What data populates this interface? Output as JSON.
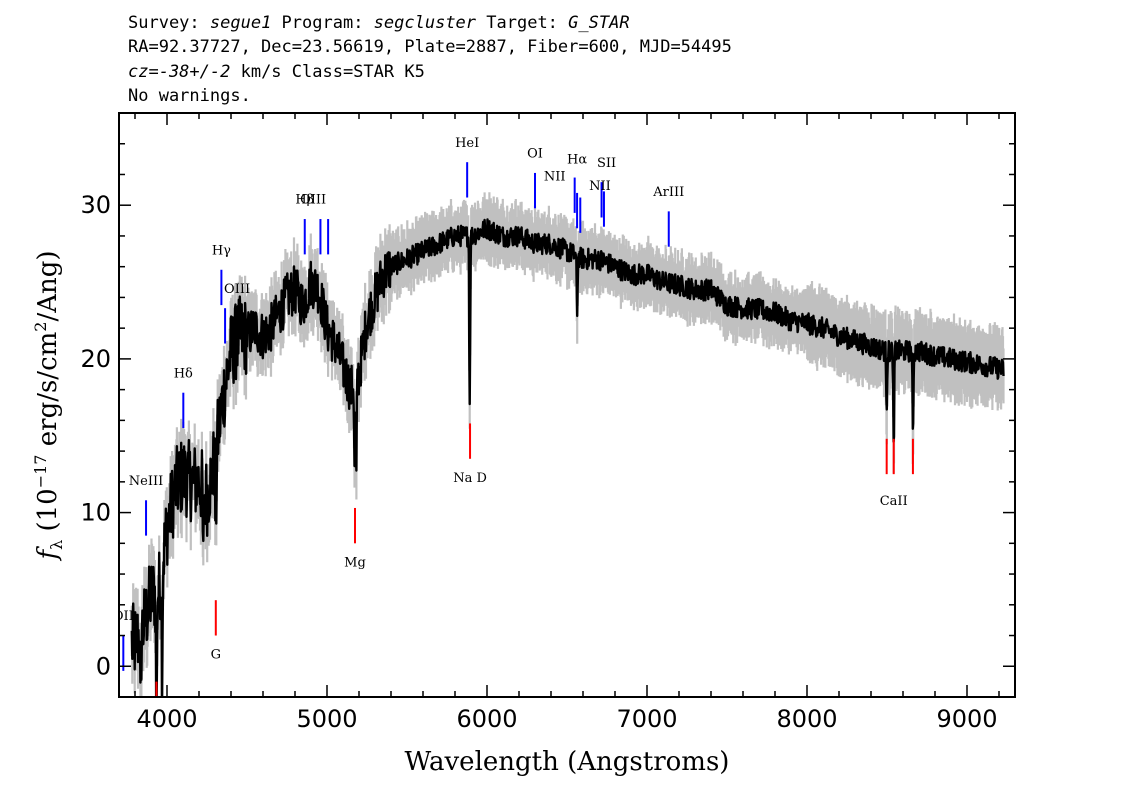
{
  "header": {
    "line1": {
      "survey_label": "Survey: ",
      "survey": "segue1",
      "program_label": " Program: ",
      "program": "segcluster",
      "target_label": " Target: ",
      "target": "G_STAR"
    },
    "line2": "RA=92.37727, Dec=23.56619, Plate=2887, Fiber=600, MJD=54495",
    "line3": {
      "cz": "cz=-38+/-2",
      "rest": " km/s Class=STAR K5"
    },
    "line4": "No warnings."
  },
  "chart_data": {
    "type": "line",
    "xlabel": "Wavelength (Angstroms)",
    "ylabel": "f_λ (10^-17 erg/s/cm^2/Ang)",
    "ylabel_parts": {
      "f": "f",
      "lambda": "λ",
      "open": " (10",
      "exp1": "−17",
      "mid": " erg/s/cm",
      "exp2": "2",
      "close": "/Ang)"
    },
    "xlim": [
      3700,
      9300
    ],
    "ylim": [
      -2,
      36
    ],
    "xticks": [
      4000,
      5000,
      6000,
      7000,
      8000,
      9000
    ],
    "yticks": [
      0,
      10,
      20,
      30
    ],
    "grid": false,
    "colors": {
      "flux": "#000000",
      "error": "#c0c0c0",
      "emission": "#0000ff",
      "absorption": "#ff0000",
      "label": "#000000"
    },
    "continuum": [
      [
        3800,
        1.5
      ],
      [
        3850,
        2.5
      ],
      [
        3900,
        4.5
      ],
      [
        3950,
        5
      ],
      [
        4000,
        9
      ],
      [
        4050,
        11.5
      ],
      [
        4100,
        12.5
      ],
      [
        4150,
        12
      ],
      [
        4200,
        12
      ],
      [
        4250,
        11
      ],
      [
        4300,
        13.5
      ],
      [
        4350,
        17.5
      ],
      [
        4400,
        20.5
      ],
      [
        4450,
        21.5
      ],
      [
        4500,
        21.5
      ],
      [
        4550,
        22
      ],
      [
        4600,
        21.5
      ],
      [
        4650,
        22
      ],
      [
        4700,
        23
      ],
      [
        4750,
        24
      ],
      [
        4800,
        24.5
      ],
      [
        4850,
        23.5
      ],
      [
        4900,
        25
      ],
      [
        4950,
        24.5
      ],
      [
        5000,
        22
      ],
      [
        5050,
        21
      ],
      [
        5100,
        19.5
      ],
      [
        5150,
        18
      ],
      [
        5200,
        19
      ],
      [
        5250,
        22.5
      ],
      [
        5300,
        24
      ],
      [
        5350,
        25.5
      ],
      [
        5400,
        26
      ],
      [
        5500,
        26.5
      ],
      [
        5600,
        27
      ],
      [
        5700,
        27.5
      ],
      [
        5800,
        28
      ],
      [
        5900,
        28
      ],
      [
        6000,
        28.5
      ],
      [
        6100,
        28
      ],
      [
        6200,
        28
      ],
      [
        6300,
        27.5
      ],
      [
        6400,
        27.5
      ],
      [
        6500,
        27
      ],
      [
        6600,
        26.5
      ],
      [
        6700,
        26.5
      ],
      [
        6800,
        26
      ],
      [
        6900,
        25.5
      ],
      [
        7000,
        25.5
      ],
      [
        7100,
        25
      ],
      [
        7200,
        24.8
      ],
      [
        7300,
        24.5
      ],
      [
        7400,
        24.5
      ],
      [
        7500,
        23.5
      ],
      [
        7600,
        23.3
      ],
      [
        7700,
        23.2
      ],
      [
        7800,
        23
      ],
      [
        7900,
        22.5
      ],
      [
        8000,
        22.3
      ],
      [
        8100,
        22
      ],
      [
        8200,
        21.5
      ],
      [
        8300,
        21.2
      ],
      [
        8400,
        20.8
      ],
      [
        8500,
        20.5
      ],
      [
        8600,
        20.5
      ],
      [
        8700,
        20.5
      ],
      [
        8800,
        20.2
      ],
      [
        8900,
        20
      ],
      [
        9000,
        19.8
      ],
      [
        9100,
        19.6
      ],
      [
        9230,
        19.3
      ]
    ],
    "absorption_features": [
      {
        "x": 3835,
        "depth": 5.5
      },
      {
        "x": 3934,
        "depth": 9
      },
      {
        "x": 3969,
        "depth": 7
      },
      {
        "x": 4227,
        "depth": 5
      },
      {
        "x": 4305,
        "depth": 6
      },
      {
        "x": 5173,
        "depth": 6.5
      },
      {
        "x": 5183,
        "depth": 7
      },
      {
        "x": 5892,
        "depth": 11
      },
      {
        "x": 6563,
        "depth": 4
      },
      {
        "x": 8498,
        "depth": 3.5
      },
      {
        "x": 8542,
        "depth": 7
      },
      {
        "x": 8662,
        "depth": 6
      }
    ],
    "emission_lines": [
      {
        "label": "OII",
        "x": 3727,
        "y1": -0.3,
        "y2": 2,
        "label_y": 3
      },
      {
        "label": "NeIII",
        "x": 3869,
        "y1": 8.5,
        "y2": 10.8,
        "label_y": 11.8
      },
      {
        "label": "Hδ",
        "x": 4102,
        "y1": 15.5,
        "y2": 17.8,
        "label_y": 18.8
      },
      {
        "label": "Hγ",
        "x": 4340,
        "y1": 23.5,
        "y2": 25.8,
        "label_y": 26.8
      },
      {
        "label": "OIII",
        "x": 4363,
        "y1": 21,
        "y2": 23.3,
        "label_y": 24.3,
        "label_dx": 12
      },
      {
        "label": "Hβ",
        "x": 4861,
        "y1": 26.8,
        "y2": 29.1,
        "label_y": 30.1
      },
      {
        "label": "",
        "x": 4959,
        "y1": 26.8,
        "y2": 29.1,
        "label_y": 30.1
      },
      {
        "label": "OIII",
        "x": 5007,
        "y1": 26.8,
        "y2": 29.1,
        "label_y": 30.1,
        "label_dx": -15
      },
      {
        "label": "HeI",
        "x": 5876,
        "y1": 30.5,
        "y2": 32.8,
        "label_y": 33.8
      },
      {
        "label": "OI",
        "x": 6300,
        "y1": 29.8,
        "y2": 32.1,
        "label_y": 33.1
      },
      {
        "label": "NII",
        "x": 6548,
        "y1": 29.5,
        "y2": 31.8,
        "label_y": 31.6,
        "label_dx": -20
      },
      {
        "label": "Hα",
        "x": 6563,
        "y1": 28.5,
        "y2": 30.8,
        "label_y": 32.7
      },
      {
        "label": "",
        "x": 6583,
        "y1": 28.2,
        "y2": 30.5,
        "label_y": 31.5
      },
      {
        "label": "SII",
        "x": 6716,
        "y1": 29.2,
        "y2": 31.5,
        "label_y": 32.5,
        "label_dx": 5
      },
      {
        "label": "NII",
        "x": 6731,
        "y1": 28.6,
        "y2": 30.9,
        "label_y": 31,
        "label_dx": -4
      },
      {
        "label": "ArIII",
        "x": 7136,
        "y1": 27.3,
        "y2": 29.6,
        "label_y": 30.6
      }
    ],
    "absorption_lines": [
      {
        "label": "",
        "x": 3934,
        "y1": -3,
        "y2": -1,
        "label_y": -4
      },
      {
        "label": "G",
        "x": 4305,
        "y1": 2,
        "y2": 4.3,
        "label_y": 0.5
      },
      {
        "label": "Mg",
        "x": 5175,
        "y1": 8,
        "y2": 10.3,
        "label_y": 6.5
      },
      {
        "label": "Na D",
        "x": 5894,
        "y1": 13.5,
        "y2": 15.8,
        "label_y": 12
      },
      {
        "label": "",
        "x": 8498,
        "y1": 12.5,
        "y2": 14.8,
        "label_y": 11
      },
      {
        "label": "CaII",
        "x": 8542,
        "y1": 12.5,
        "y2": 14.8,
        "label_y": 10.5
      },
      {
        "label": "",
        "x": 8662,
        "y1": 12.5,
        "y2": 14.8,
        "label_y": 11
      }
    ]
  }
}
